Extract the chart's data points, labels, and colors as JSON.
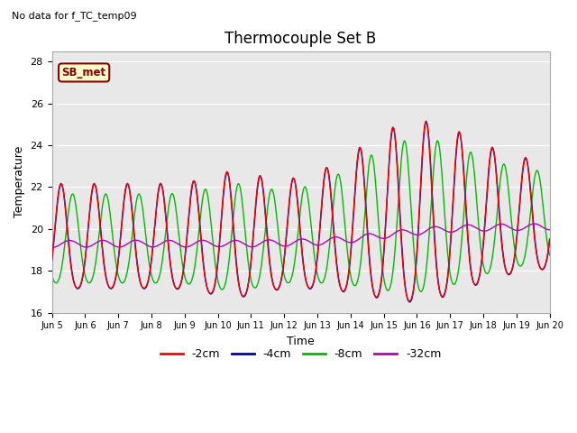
{
  "title": "Thermocouple Set B",
  "xlabel": "Time",
  "ylabel": "Temperature",
  "note": "No data for f_TC_temp09",
  "legend_label": "SB_met",
  "ylim": [
    16,
    28.5
  ],
  "series_colors": {
    "-2cm": "#FF0000",
    "-4cm": "#0000BB",
    "-8cm": "#00BB00",
    "-32cm": "#BB00BB"
  },
  "series_labels": [
    "-2cm",
    "-4cm",
    "-8cm",
    "-32cm"
  ],
  "bg_color": "#E8E8E8",
  "legend_box_facecolor": "#FFFFCC",
  "legend_box_edgecolor": "#8B0000",
  "title_fontsize": 12,
  "axis_fontsize": 9,
  "note_fontsize": 8
}
